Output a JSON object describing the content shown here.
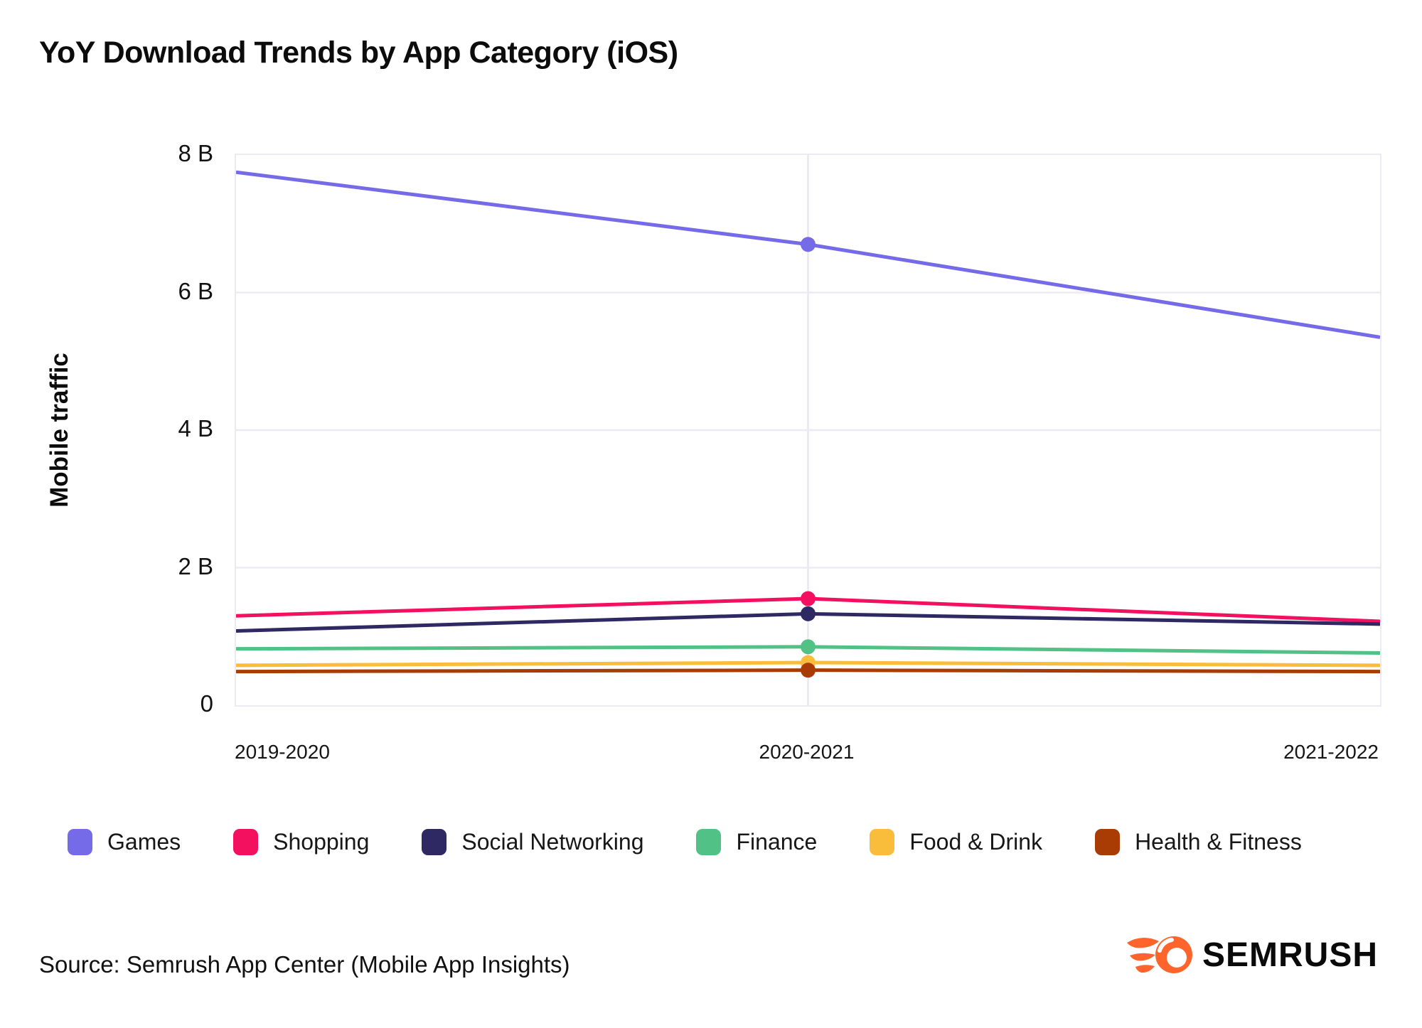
{
  "title": "YoY Download Trends by App Category (iOS)",
  "y_axis": {
    "title": "Mobile traffic",
    "ticks": [
      {
        "label": "8 B",
        "value": 8
      },
      {
        "label": "6 B",
        "value": 6
      },
      {
        "label": "4 B",
        "value": 4
      },
      {
        "label": "2 B",
        "value": 2
      },
      {
        "label": "0",
        "value": 0
      }
    ]
  },
  "x_axis": {
    "labels": [
      "2019-2020",
      "2020-2021",
      "2021-2022"
    ]
  },
  "chart_data": {
    "type": "line",
    "x": [
      "2019-2020",
      "2020-2021",
      "2021-2022"
    ],
    "series": [
      {
        "name": "Games",
        "color": "#756AE8",
        "values": [
          7.75,
          6.7,
          5.35
        ]
      },
      {
        "name": "Shopping",
        "color": "#F2105F",
        "values": [
          1.3,
          1.55,
          1.22
        ]
      },
      {
        "name": "Social Networking",
        "color": "#2F2963",
        "values": [
          1.08,
          1.33,
          1.18
        ]
      },
      {
        "name": "Finance",
        "color": "#52C185",
        "values": [
          0.82,
          0.85,
          0.76
        ]
      },
      {
        "name": "Food & Drink",
        "color": "#F9BC3B",
        "values": [
          0.58,
          0.62,
          0.58
        ]
      },
      {
        "name": "Health & Fitness",
        "color": "#A93C05",
        "values": [
          0.49,
          0.51,
          0.49
        ]
      }
    ],
    "title": "YoY Download Trends by App Category (iOS)",
    "xlabel": "",
    "ylabel": "Mobile traffic",
    "ylim": [
      0,
      8
    ],
    "yticks": [
      0,
      2,
      4,
      6,
      8
    ],
    "grid": true,
    "gridline_color": "#ECEBF3",
    "legend_position": "bottom",
    "markers": "middle-point-only",
    "unit": "B"
  },
  "source": {
    "text": "Source: Semrush App Center (Mobile App Insights)"
  },
  "logo": {
    "text": "SEMRUSH",
    "flame_color": "#FF642D",
    "text_color": "#0a0a0a"
  }
}
